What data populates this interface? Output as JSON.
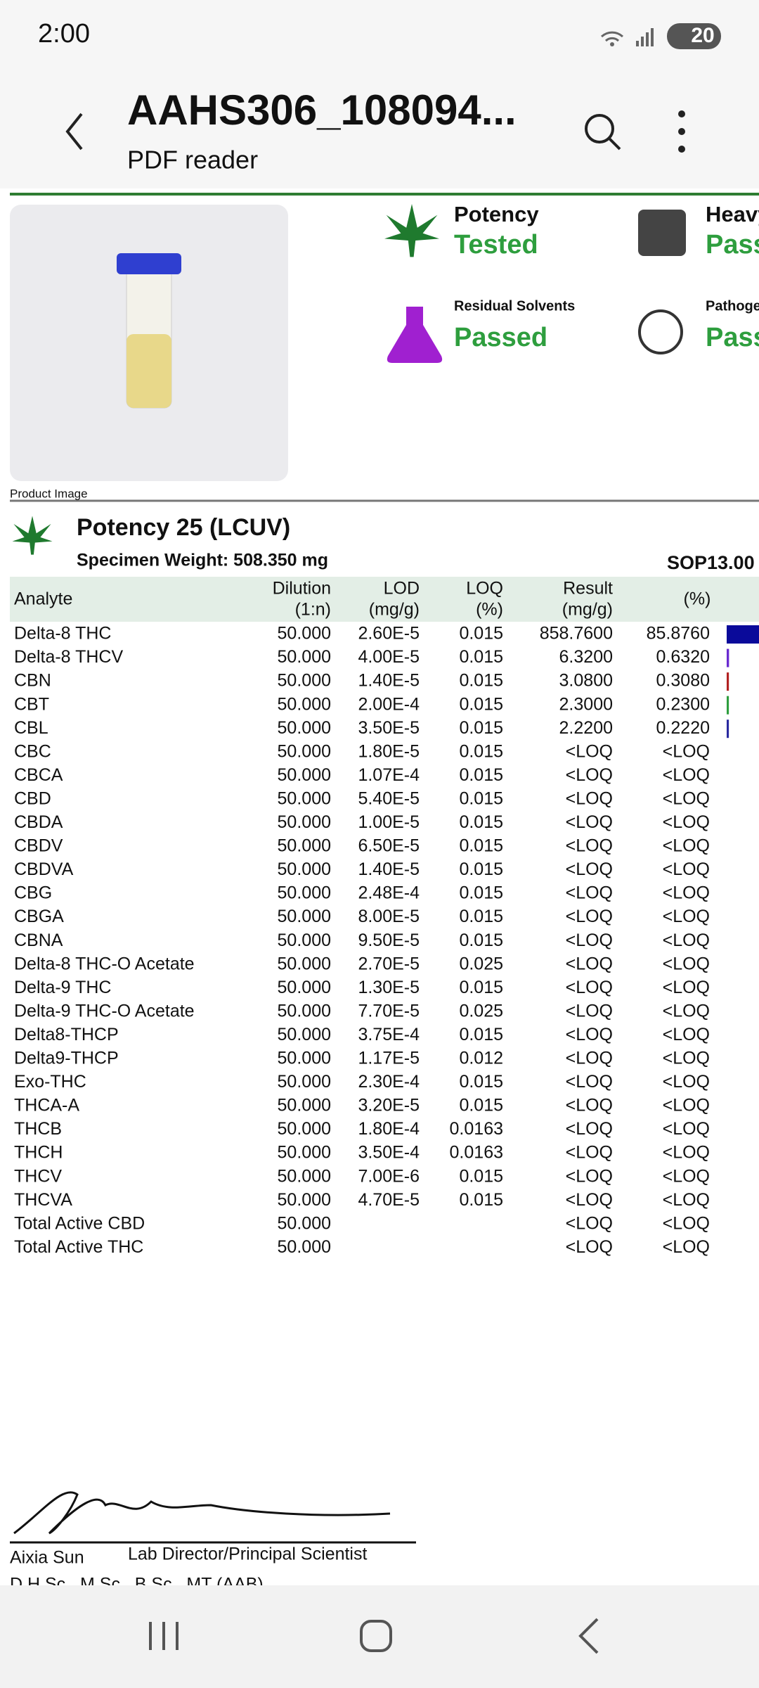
{
  "status_bar": {
    "time": "2:00",
    "battery": "20"
  },
  "app_bar": {
    "title": "AAHS306_108094...",
    "subtitle": "PDF reader"
  },
  "badges": [
    {
      "label": "Potency",
      "status": "Tested",
      "color": "#2e9e3e"
    },
    {
      "label": "Heavy Metals",
      "status": "Passed",
      "color": "#2e9e3e"
    },
    {
      "label": "Residual Solvents",
      "status": "Passed",
      "color": "#2e9e3e"
    },
    {
      "label": "Pathogens",
      "status": "Passed",
      "color": "#2e9e3e"
    }
  ],
  "product_image_caption": "Product Image",
  "section": {
    "title": "Potency 25 (LCUV)",
    "specimen": "Specimen Weight: 508.350 mg",
    "sop": "SOP13.00"
  },
  "table": {
    "header": [
      [
        "Analyte"
      ],
      [
        "Dilution",
        "(1:n)"
      ],
      [
        "LOD",
        "(mg/g)"
      ],
      [
        "LOQ",
        "(%)"
      ],
      [
        "Result",
        "(mg/g)"
      ],
      [
        "(%)"
      ]
    ],
    "rows": [
      [
        "Delta-8 THC",
        "50.000",
        "2.60E-5",
        "0.015",
        "858.7600",
        "85.8760"
      ],
      [
        "Delta-8 THCV",
        "50.000",
        "4.00E-5",
        "0.015",
        "6.3200",
        "0.6320"
      ],
      [
        "CBN",
        "50.000",
        "1.40E-5",
        "0.015",
        "3.0800",
        "0.3080"
      ],
      [
        "CBT",
        "50.000",
        "2.00E-4",
        "0.015",
        "2.3000",
        "0.2300"
      ],
      [
        "CBL",
        "50.000",
        "3.50E-5",
        "0.015",
        "2.2200",
        "0.2220"
      ],
      [
        "CBC",
        "50.000",
        "1.80E-5",
        "0.015",
        "<LOQ",
        "<LOQ"
      ],
      [
        "CBCA",
        "50.000",
        "1.07E-4",
        "0.015",
        "<LOQ",
        "<LOQ"
      ],
      [
        "CBD",
        "50.000",
        "5.40E-5",
        "0.015",
        "<LOQ",
        "<LOQ"
      ],
      [
        "CBDA",
        "50.000",
        "1.00E-5",
        "0.015",
        "<LOQ",
        "<LOQ"
      ],
      [
        "CBDV",
        "50.000",
        "6.50E-5",
        "0.015",
        "<LOQ",
        "<LOQ"
      ],
      [
        "CBDVA",
        "50.000",
        "1.40E-5",
        "0.015",
        "<LOQ",
        "<LOQ"
      ],
      [
        "CBG",
        "50.000",
        "2.48E-4",
        "0.015",
        "<LOQ",
        "<LOQ"
      ],
      [
        "CBGA",
        "50.000",
        "8.00E-5",
        "0.015",
        "<LOQ",
        "<LOQ"
      ],
      [
        "CBNA",
        "50.000",
        "9.50E-5",
        "0.015",
        "<LOQ",
        "<LOQ"
      ],
      [
        "Delta-8 THC-O Acetate",
        "50.000",
        "2.70E-5",
        "0.025",
        "<LOQ",
        "<LOQ"
      ],
      [
        "Delta-9 THC",
        "50.000",
        "1.30E-5",
        "0.015",
        "<LOQ",
        "<LOQ"
      ],
      [
        "Delta-9 THC-O Acetate",
        "50.000",
        "7.70E-5",
        "0.025",
        "<LOQ",
        "<LOQ"
      ],
      [
        "Delta8-THCP",
        "50.000",
        "3.75E-4",
        "0.015",
        "<LOQ",
        "<LOQ"
      ],
      [
        "Delta9-THCP",
        "50.000",
        "1.17E-5",
        "0.012",
        "<LOQ",
        "<LOQ"
      ],
      [
        "Exo-THC",
        "50.000",
        "2.30E-4",
        "0.015",
        "<LOQ",
        "<LOQ"
      ],
      [
        "THCA-A",
        "50.000",
        "3.20E-5",
        "0.015",
        "<LOQ",
        "<LOQ"
      ],
      [
        "THCB",
        "50.000",
        "1.80E-4",
        "0.0163",
        "<LOQ",
        "<LOQ"
      ],
      [
        "THCH",
        "50.000",
        "3.50E-4",
        "0.0163",
        "<LOQ",
        "<LOQ"
      ],
      [
        "THCV",
        "50.000",
        "7.00E-6",
        "0.015",
        "<LOQ",
        "<LOQ"
      ],
      [
        "THCVA",
        "50.000",
        "4.70E-5",
        "0.015",
        "<LOQ",
        "<LOQ"
      ],
      [
        "Total Active CBD",
        "50.000",
        null,
        null,
        "<LOQ",
        "<LOQ"
      ],
      [
        "Total Active THC",
        "50.000",
        null,
        null,
        "<LOQ",
        "<LOQ"
      ]
    ],
    "bar_colors": [
      "#0a0a9a",
      "#6a2bd0",
      "#b22222",
      "#2e9e3e",
      "#2a2aa0"
    ]
  },
  "signature": {
    "name": "Aixia Sun",
    "role": "Lab Director/Principal Scientist",
    "credentials": "D.H.Sc., M.Sc., B.Sc., MT (AAB)"
  }
}
